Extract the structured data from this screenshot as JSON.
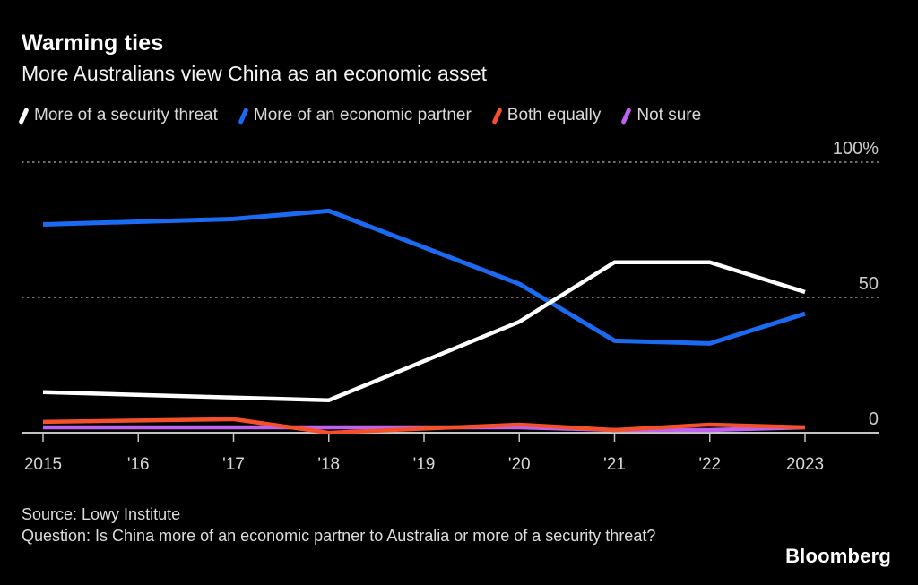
{
  "header": {
    "title": "Warming ties",
    "subtitle": "More Australians view China as an economic asset"
  },
  "chart_data": {
    "type": "line",
    "title": "Warming ties",
    "subtitle": "More Australians view China as an economic asset",
    "x_range": [
      2015,
      2023
    ],
    "x_tick_years": [
      2015,
      2016,
      2017,
      2018,
      2019,
      2020,
      2021,
      2022,
      2023
    ],
    "x_tick_labels": [
      "2015",
      "'16",
      "'17",
      "'18",
      "'19",
      "'20",
      "'21",
      "'22",
      "2023"
    ],
    "y_axis": {
      "range": [
        0,
        100
      ],
      "unit": "%",
      "ticks": [
        {
          "value": 100,
          "label": "100%",
          "style": "dotted"
        },
        {
          "value": 50,
          "label": "50",
          "style": "dotted"
        },
        {
          "value": 0,
          "label": "0",
          "style": "solid"
        }
      ]
    },
    "grid": "horizontal-dotted",
    "legend_position": "top",
    "series": [
      {
        "name": "More of a security threat",
        "color": "#ffffff",
        "x": [
          2015,
          2017,
          2018,
          2020,
          2021,
          2022,
          2023
        ],
        "values": [
          15,
          13,
          12,
          41,
          63,
          63,
          52
        ]
      },
      {
        "name": "More of an economic partner",
        "color": "#1a6af2",
        "x": [
          2015,
          2017,
          2018,
          2020,
          2021,
          2022,
          2023
        ],
        "values": [
          77,
          79,
          82,
          55,
          34,
          33,
          44
        ]
      },
      {
        "name": "Both equally",
        "color": "#f4502a",
        "x": [
          2015,
          2017,
          2018,
          2020,
          2021,
          2022,
          2023
        ],
        "values": [
          4,
          5,
          0,
          3,
          1,
          3,
          2
        ]
      },
      {
        "name": "Not sure",
        "color": "#bd63f0",
        "x": [
          2015,
          2017,
          2018,
          2020,
          2021,
          2022,
          2023
        ],
        "values": [
          2,
          2,
          2,
          2,
          1,
          1,
          2
        ]
      }
    ]
  },
  "footer": {
    "source": "Source: Lowy Institute",
    "question": "Question: Is China more of an economic partner to Australia or more of a security threat?",
    "brand": "Bloomberg"
  },
  "colors": {
    "background": "#000000",
    "grid_dotted": "#707070",
    "axis_line": "#c4c4c4",
    "axis_label": "#cccccc",
    "x_label": "#d6d6d6"
  }
}
